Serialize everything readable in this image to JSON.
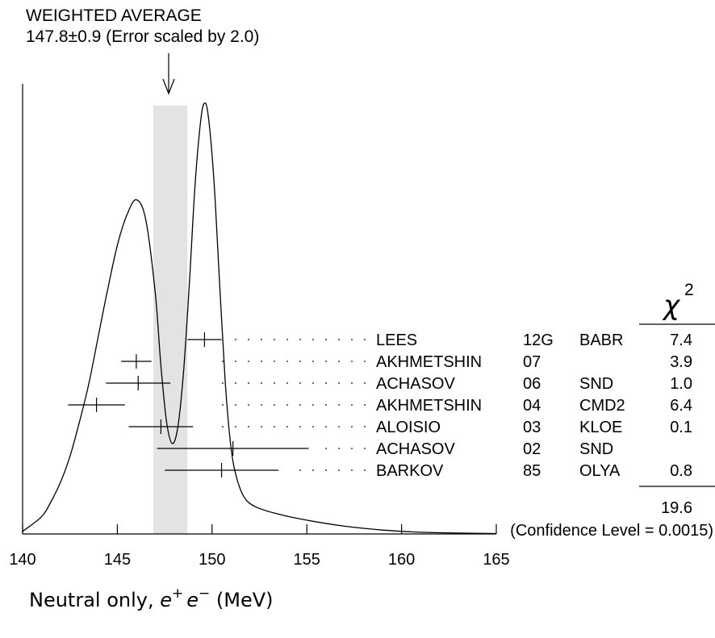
{
  "chart_data": {
    "type": "scatter",
    "title": "WEIGHTED AVERAGE",
    "subtitle": "147.8±0.9 (Error scaled by 2.0)",
    "weighted_average": {
      "value": 147.8,
      "error": 0.9,
      "band": [
        146.9,
        148.7
      ]
    },
    "xlabel_parts": {
      "prefix": "Neutral only, ",
      "e": "e",
      "plus": "+",
      "minus": "−",
      "suffix": " (MeV)"
    },
    "xlim": [
      140,
      165
    ],
    "xticks": [
      140,
      145,
      150,
      155,
      160,
      165
    ],
    "xtick_labels": [
      "140",
      "145",
      "150",
      "155",
      "160",
      "165"
    ],
    "chi2_header": {
      "symbol": "χ",
      "exponent": "2"
    },
    "measurements": [
      {
        "author": "LEES",
        "year": "12G",
        "experiment": "BABR",
        "chi2": "7.4",
        "value": 149.6,
        "error": 0.9
      },
      {
        "author": "AKHMETSHIN",
        "year": "07",
        "experiment": "",
        "chi2": "3.9",
        "value": 146.0,
        "error": 0.8
      },
      {
        "author": "ACHASOV",
        "year": "06",
        "experiment": "SND",
        "chi2": "1.0",
        "value": 146.1,
        "error": 1.7
      },
      {
        "author": "AKHMETSHIN",
        "year": "04",
        "experiment": "CMD2",
        "chi2": "6.4",
        "value": 143.9,
        "error": 1.5
      },
      {
        "author": "ALOISIO",
        "year": "03",
        "experiment": "KLOE",
        "chi2": "0.1",
        "value": 147.3,
        "error": 1.7
      },
      {
        "author": "ACHASOV",
        "year": "02",
        "experiment": "SND",
        "chi2": "",
        "value": 151.1,
        "error": 4.0
      },
      {
        "author": "BARKOV",
        "year": "85",
        "experiment": "OLYA",
        "chi2": "0.8",
        "value": 150.5,
        "error": 3.0
      }
    ],
    "chi2_total": "19.6",
    "confidence_level": "(Confidence Level = 0.0015)",
    "ideogram_curve": [
      [
        140.0,
        0.006
      ],
      [
        141.0,
        0.04
      ],
      [
        141.5,
        0.075
      ],
      [
        142.0,
        0.12
      ],
      [
        142.5,
        0.18
      ],
      [
        143.0,
        0.26
      ],
      [
        143.5,
        0.35
      ],
      [
        144.0,
        0.46
      ],
      [
        144.5,
        0.57
      ],
      [
        145.0,
        0.67
      ],
      [
        145.5,
        0.74
      ],
      [
        146.0,
        0.776
      ],
      [
        146.5,
        0.73
      ],
      [
        147.0,
        0.56
      ],
      [
        147.3,
        0.39
      ],
      [
        147.6,
        0.26
      ],
      [
        147.9,
        0.21
      ],
      [
        148.2,
        0.25
      ],
      [
        148.5,
        0.38
      ],
      [
        148.8,
        0.58
      ],
      [
        149.1,
        0.81
      ],
      [
        149.4,
        0.96
      ],
      [
        149.6,
        1.0
      ],
      [
        149.8,
        0.97
      ],
      [
        150.1,
        0.82
      ],
      [
        150.4,
        0.58
      ],
      [
        150.7,
        0.35
      ],
      [
        151.0,
        0.2
      ],
      [
        151.3,
        0.13
      ],
      [
        151.7,
        0.085
      ],
      [
        152.3,
        0.063
      ],
      [
        153.5,
        0.046
      ],
      [
        155.0,
        0.032
      ],
      [
        157.0,
        0.018
      ],
      [
        159.0,
        0.009
      ],
      [
        161.0,
        0.004
      ],
      [
        163.0,
        0.002
      ],
      [
        165.0,
        0.001
      ]
    ]
  }
}
